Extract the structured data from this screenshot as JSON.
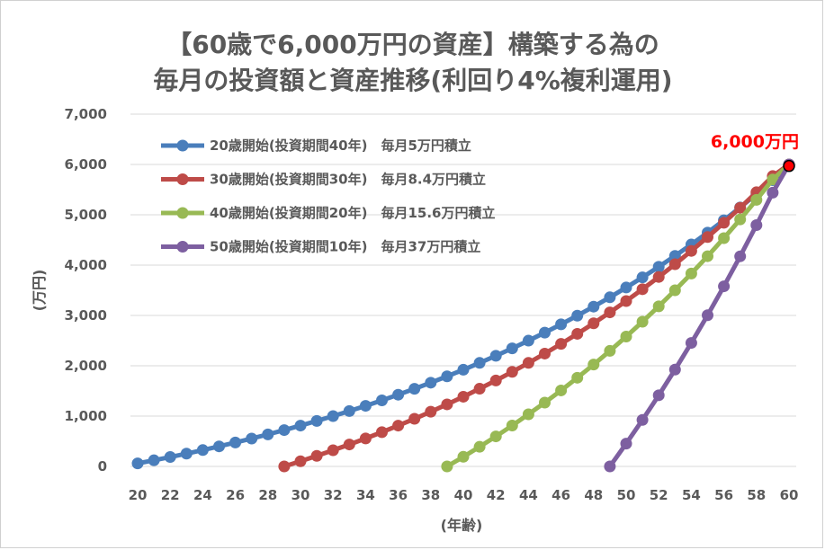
{
  "chart_data": {
    "type": "line",
    "title_lines": [
      "【60歳で6,000万円の資産】構築する為の",
      "毎月の投資額と資産推移(利回り4%複利運用)"
    ],
    "xlabel": "(年齢)",
    "ylabel": "(万円)",
    "xlim": [
      20,
      60
    ],
    "ylim": [
      0,
      7000
    ],
    "x_ticks": [
      "20",
      "22",
      "24",
      "26",
      "28",
      "30",
      "32",
      "34",
      "36",
      "38",
      "40",
      "42",
      "44",
      "46",
      "48",
      "50",
      "52",
      "54",
      "56",
      "58",
      "60"
    ],
    "y_ticks": [
      "0",
      "1,000",
      "2,000",
      "3,000",
      "4,000",
      "5,000",
      "6,000",
      "7,000"
    ],
    "grid": "horizontal",
    "legend_position": "top-left",
    "annotation": {
      "text": "6,000万円",
      "x": 60,
      "y": 5970,
      "color": "#ff0000"
    },
    "series": [
      {
        "name": "20歳開始(投資期間40年)　毎月5万円積立",
        "color": "#4a7ebb",
        "x": [
          20,
          21,
          22,
          23,
          24,
          25,
          26,
          27,
          28,
          29,
          30,
          31,
          32,
          33,
          34,
          35,
          36,
          37,
          38,
          39,
          40,
          41,
          42,
          43,
          44,
          45,
          46,
          47,
          48,
          49,
          50,
          51,
          52,
          53,
          54,
          55,
          56,
          57,
          58,
          59,
          60
        ],
        "values": [
          60,
          122,
          187,
          254,
          325,
          398,
          475,
          554,
          636,
          722,
          811,
          904,
          1000,
          1100,
          1204,
          1313,
          1425,
          1542,
          1664,
          1790,
          1921,
          2057,
          2199,
          2346,
          2499,
          2658,
          2824,
          2996,
          3175,
          3361,
          3555,
          3756,
          3966,
          4184,
          4410,
          4646,
          4891,
          5146,
          5411,
          5687,
          5974
        ]
      },
      {
        "name": "30歳開始(投資期間30年)　毎月8.4万円積立",
        "color": "#be4b48",
        "x": [
          29,
          30,
          31,
          32,
          33,
          34,
          35,
          36,
          37,
          38,
          39,
          40,
          41,
          42,
          43,
          44,
          45,
          46,
          47,
          48,
          49,
          50,
          51,
          52,
          53,
          54,
          55,
          56,
          57,
          58,
          59,
          60
        ],
        "values": [
          0,
          103,
          210,
          321,
          436,
          556,
          681,
          811,
          946,
          1087,
          1233,
          1385,
          1544,
          1708,
          1879,
          2057,
          2242,
          2435,
          2635,
          2844,
          3061,
          3286,
          3521,
          3764,
          4018,
          4282,
          4557,
          4842,
          5139,
          5448,
          5769,
          6000
        ]
      },
      {
        "name": "40歳開始(投資期間20年)　毎月15.6万円積立",
        "color": "#98b954",
        "x": [
          39,
          40,
          41,
          42,
          43,
          44,
          45,
          46,
          47,
          48,
          49,
          50,
          51,
          52,
          53,
          54,
          55,
          56,
          57,
          58,
          59,
          60
        ],
        "values": [
          0,
          191,
          390,
          597,
          812,
          1036,
          1268,
          1510,
          1762,
          2024,
          2296,
          2580,
          2875,
          3181,
          3500,
          3832,
          4177,
          4536,
          4909,
          5297,
          5700,
          6000
        ]
      },
      {
        "name": "50歳開始(投資期間10年)　毎月37万円積立",
        "color": "#7d5fa0",
        "x": [
          49,
          50,
          51,
          52,
          53,
          54,
          55,
          56,
          57,
          58,
          59,
          60
        ],
        "values": [
          0,
          453,
          924,
          1414,
          1924,
          2454,
          3005,
          3579,
          4175,
          4795,
          5440,
          6000
        ]
      }
    ]
  }
}
